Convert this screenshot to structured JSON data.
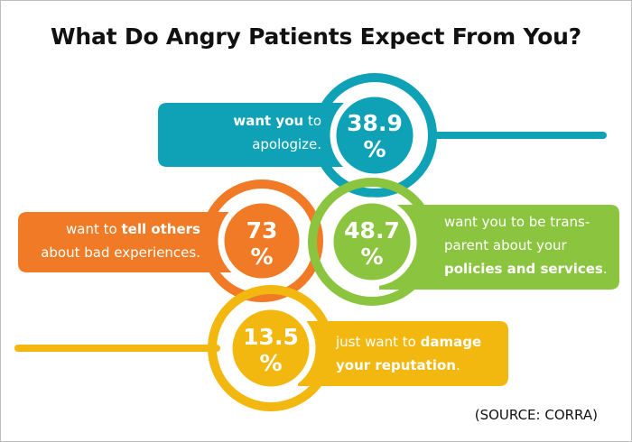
{
  "colors": {
    "teal": "#0fa1b5",
    "orange": "#f07a25",
    "green": "#8bc53f",
    "yellow": "#f2b80f",
    "border": "#bdbdbd",
    "title": "#111111"
  },
  "chart_data": {
    "type": "infographic",
    "title": "What Do Angry Patients Expect From You?",
    "unit": "%",
    "series": [
      {
        "name": "apologize",
        "value": 38.9,
        "value_label": "38.9",
        "unit_label": "%",
        "color": "#0fa1b5",
        "text_parts": [
          {
            "text": "want you",
            "bold": true
          },
          {
            "text": " to",
            "bold": false
          },
          {
            "text": "\napologize.",
            "bold": false
          }
        ]
      },
      {
        "name": "tell others",
        "value": 73,
        "value_label": "73",
        "unit_label": "%",
        "color": "#f07a25",
        "text_parts": [
          {
            "text": "want to ",
            "bold": false
          },
          {
            "text": "tell others",
            "bold": true
          },
          {
            "text": "\nabout bad experiences.",
            "bold": false
          }
        ]
      },
      {
        "name": "transparent",
        "value": 48.7,
        "value_label": "48.7",
        "unit_label": "%",
        "color": "#8bc53f",
        "text_parts": [
          {
            "text": "want you to be trans-",
            "bold": false
          },
          {
            "text": "\nparent about your",
            "bold": false
          },
          {
            "text": "\npolicies and services",
            "bold": true
          },
          {
            "text": ".",
            "bold": false
          }
        ]
      },
      {
        "name": "damage reputation",
        "value": 13.5,
        "value_label": "13.5",
        "unit_label": "%",
        "color": "#f2b80f",
        "text_parts": [
          {
            "text": "just want to ",
            "bold": false
          },
          {
            "text": "damage",
            "bold": true
          },
          {
            "text": "\nyour reputation",
            "bold": true
          },
          {
            "text": ".",
            "bold": false
          }
        ]
      }
    ],
    "source": "(SOURCE: CORRA)"
  }
}
